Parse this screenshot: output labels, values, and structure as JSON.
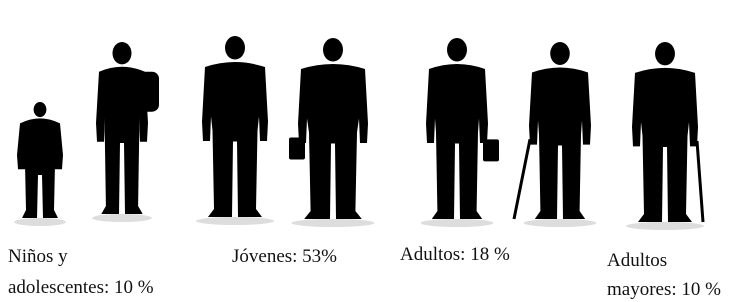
{
  "groups": [
    {
      "lines": [
        "Niños y",
        "adolescentes: 10 %"
      ]
    },
    {
      "lines": [
        "Jóvenes: 53%"
      ]
    },
    {
      "lines": [
        "Adultos: 18 %"
      ]
    },
    {
      "lines": [
        "Adultos",
        "mayores: 10 %"
      ]
    }
  ]
}
